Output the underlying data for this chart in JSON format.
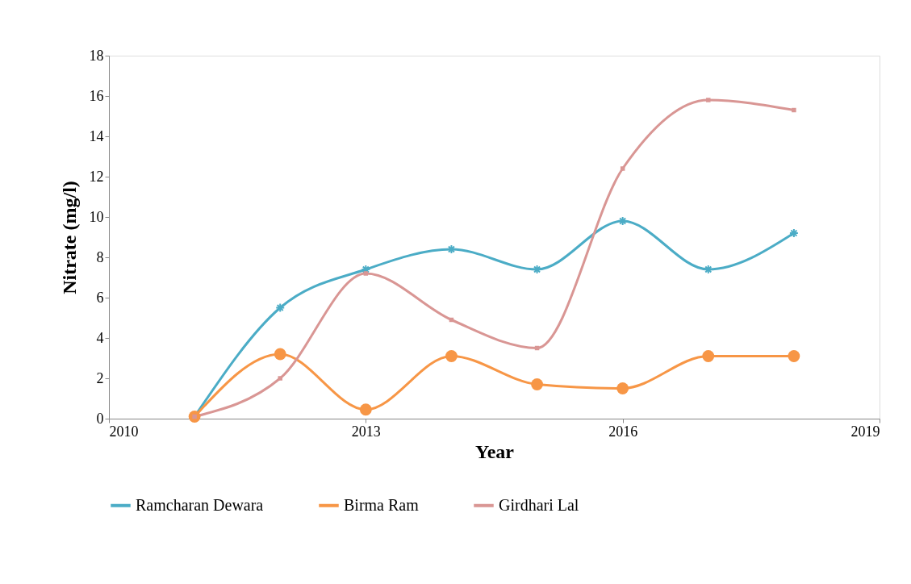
{
  "chart_data": {
    "type": "line",
    "xlabel": "Year",
    "ylabel": "Nitrate (mg/l)",
    "x": [
      2011,
      2012,
      2013,
      2014,
      2015,
      2016,
      2017,
      2018
    ],
    "series": [
      {
        "name": "Ramcharan Dewara",
        "color": "#4bacc6",
        "marker": "cross",
        "values": [
          0.1,
          5.5,
          7.4,
          8.4,
          7.4,
          9.8,
          7.4,
          9.2
        ]
      },
      {
        "name": "Birma Ram",
        "color": "#f79646",
        "marker": "circle",
        "values": [
          0.1,
          3.2,
          0.45,
          3.1,
          1.7,
          1.5,
          3.1,
          3.1
        ]
      },
      {
        "name": "Girdhari Lal",
        "color": "#d99694",
        "marker": "square",
        "values": [
          0.1,
          2.0,
          7.2,
          4.9,
          3.5,
          12.4,
          15.8,
          15.3
        ]
      }
    ],
    "xlim": [
      2010,
      2019
    ],
    "xticks": [
      2010,
      2013,
      2016,
      2019
    ],
    "ylim": [
      0,
      18
    ],
    "yticks": [
      0,
      2,
      4,
      6,
      8,
      10,
      12,
      14,
      16,
      18
    ],
    "grid": false,
    "legend": "bottom"
  }
}
